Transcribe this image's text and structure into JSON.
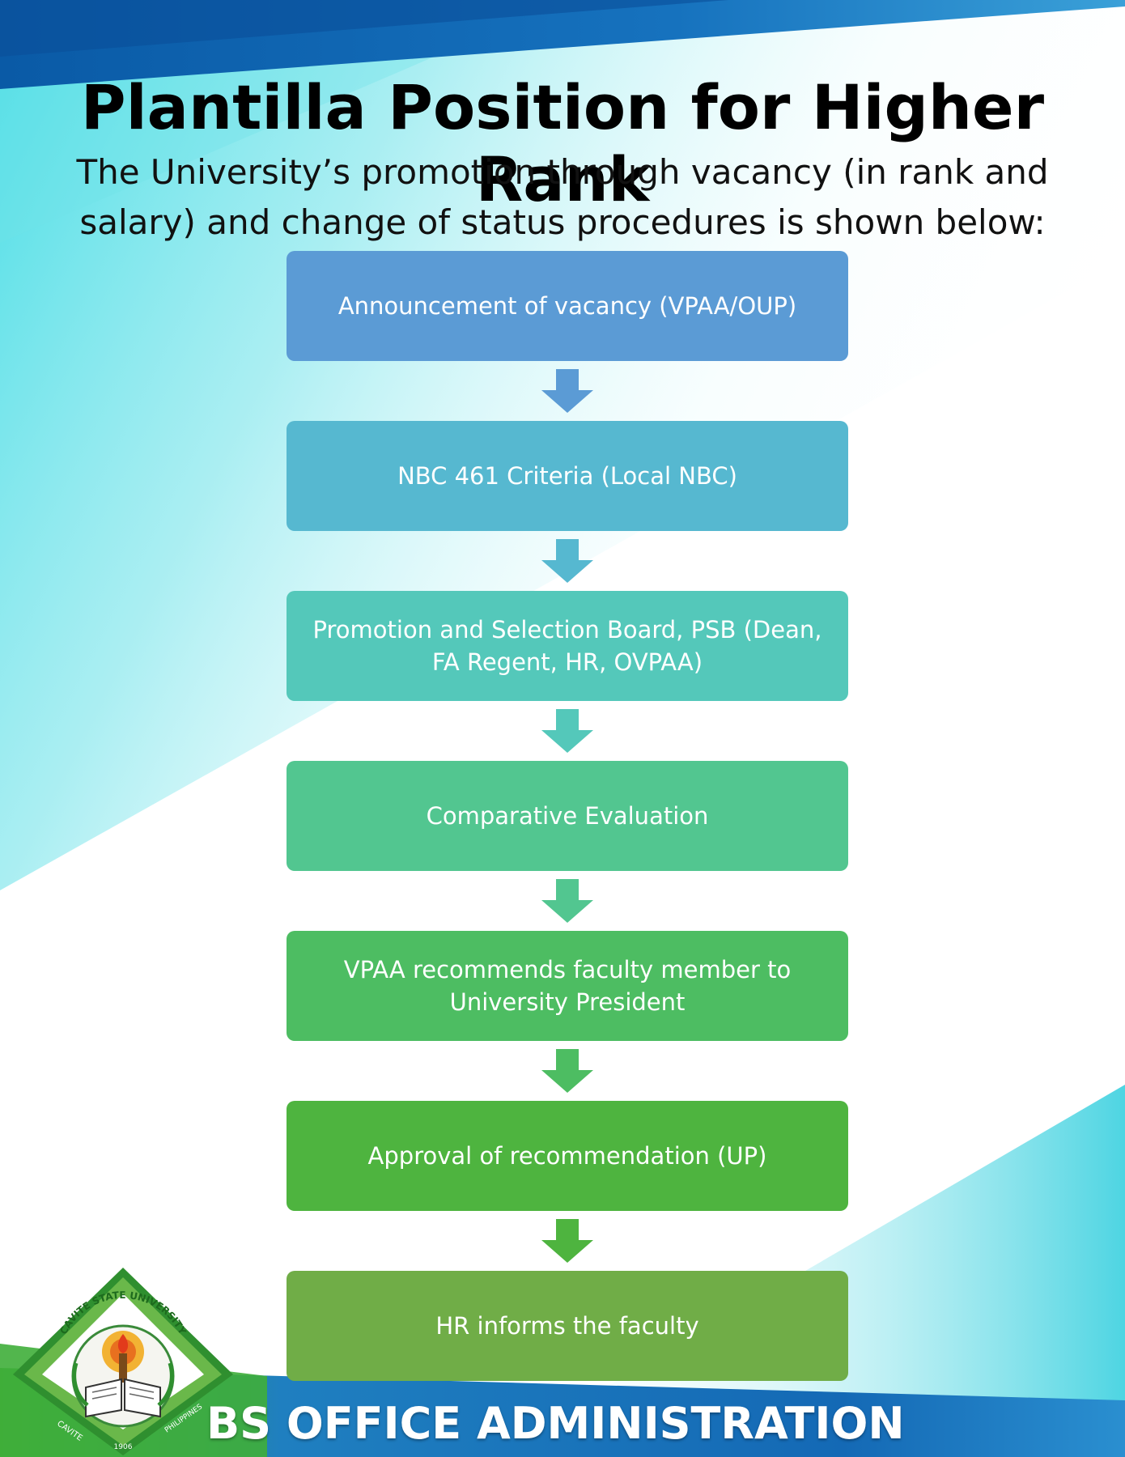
{
  "title": "Plantilla Position for Higher Rank",
  "subtitle": "The University’s promotion through vacancy (in rank and salary) and change of status procedures is shown below:",
  "steps": [
    {
      "label": "Announcement of vacancy (VPAA/OUP)",
      "color": "#5b9bd5"
    },
    {
      "label": "NBC 461 Criteria (Local NBC)",
      "color": "#56b8d0"
    },
    {
      "label": "Promotion and Selection Board, PSB (Dean, FA Regent, HR, OVPAA)",
      "color": "#54c8ba"
    },
    {
      "label": "Comparative Evaluation",
      "color": "#52c690"
    },
    {
      "label": "VPAA recommends faculty member to University President",
      "color": "#4dbd62"
    },
    {
      "label": "Approval of recommendation (UP)",
      "color": "#4eb43f"
    },
    {
      "label": "HR informs the faculty",
      "color": "#70ad47"
    }
  ],
  "arrow_colors": [
    "#5b9bd5",
    "#56b8d0",
    "#54c8ba",
    "#52c690",
    "#4dbd62",
    "#4eb43f",
    "#70ad47"
  ],
  "logo": {
    "arc_top": "CAVITE STATE UNIVERSITY",
    "left_text": "CAVITE",
    "right_text": "PHILIPPINES",
    "year": "1906"
  },
  "footer": "BS OFFICE ADMINISTRATION",
  "colors": {
    "top_band": "#0a5faa",
    "teal_wash": "#3fd8e0",
    "footer_blue": "#1260b0",
    "footer_green": "#3fae3a",
    "logo_border": "#3a9a3a"
  }
}
